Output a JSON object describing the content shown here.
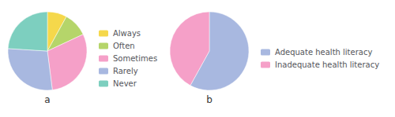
{
  "chart_data": [
    {
      "type": "pie",
      "title": "a",
      "categories": [
        "Always",
        "Often",
        "Sometimes",
        "Rarely",
        "Never"
      ],
      "values": [
        8,
        10,
        30,
        28,
        24
      ],
      "colors": [
        "#f5d84b",
        "#b5d56a",
        "#f5a0c8",
        "#a8b8e0",
        "#7dcfbf"
      ],
      "legend": "right"
    },
    {
      "type": "pie",
      "title": "b",
      "categories": [
        "Adequate health literacy",
        "Inadequate health literacy"
      ],
      "values": [
        58,
        42
      ],
      "colors": [
        "#a8b8e0",
        "#f5a0c8"
      ],
      "legend": "right"
    }
  ]
}
